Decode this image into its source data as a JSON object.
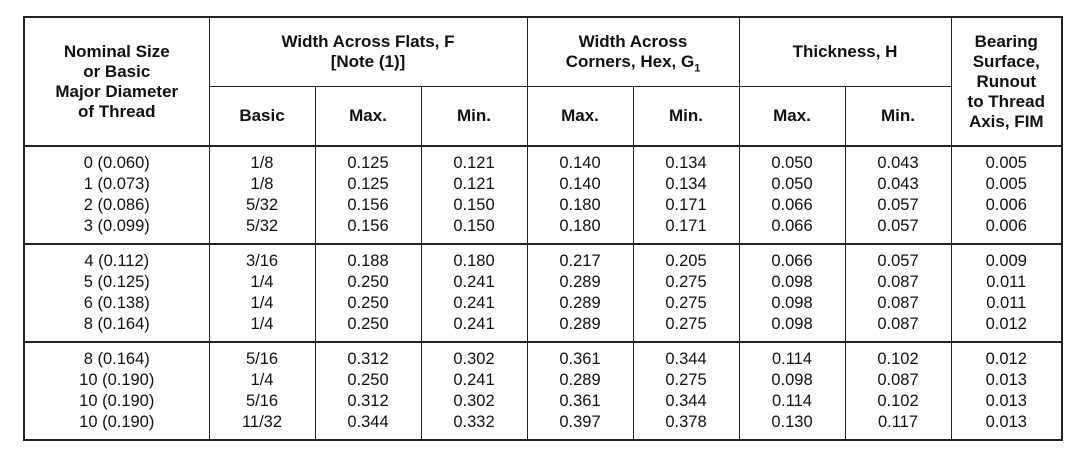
{
  "headers": {
    "nominal": [
      "Nominal Size",
      "or Basic",
      "Major Diameter",
      "of Thread"
    ],
    "width_flats": [
      "Width Across Flats, F",
      "[Note (1)]"
    ],
    "width_corners_a": "Width Across",
    "width_corners_b": "Corners, Hex, G",
    "width_corners_sub": "1",
    "thickness": "Thickness, H",
    "bearing": [
      "Bearing",
      "Surface,",
      "Runout",
      "to Thread",
      "Axis, FIM"
    ],
    "basic": "Basic",
    "max": "Max.",
    "min": "Min."
  },
  "groups": [
    [
      [
        "0 (0.060)",
        "1/8",
        "0.125",
        "0.121",
        "0.140",
        "0.134",
        "0.050",
        "0.043",
        "0.005"
      ],
      [
        "1 (0.073)",
        "1/8",
        "0.125",
        "0.121",
        "0.140",
        "0.134",
        "0.050",
        "0.043",
        "0.005"
      ],
      [
        "2 (0.086)",
        "5/32",
        "0.156",
        "0.150",
        "0.180",
        "0.171",
        "0.066",
        "0.057",
        "0.006"
      ],
      [
        "3 (0.099)",
        "5/32",
        "0.156",
        "0.150",
        "0.180",
        "0.171",
        "0.066",
        "0.057",
        "0.006"
      ]
    ],
    [
      [
        "4 (0.112)",
        "3/16",
        "0.188",
        "0.180",
        "0.217",
        "0.205",
        "0.066",
        "0.057",
        "0.009"
      ],
      [
        "5 (0.125)",
        "1/4",
        "0.250",
        "0.241",
        "0.289",
        "0.275",
        "0.098",
        "0.087",
        "0.011"
      ],
      [
        "6 (0.138)",
        "1/4",
        "0.250",
        "0.241",
        "0.289",
        "0.275",
        "0.098",
        "0.087",
        "0.011"
      ],
      [
        "8 (0.164)",
        "1/4",
        "0.250",
        "0.241",
        "0.289",
        "0.275",
        "0.098",
        "0.087",
        "0.012"
      ]
    ],
    [
      [
        "8 (0.164)",
        "5/16",
        "0.312",
        "0.302",
        "0.361",
        "0.344",
        "0.114",
        "0.102",
        "0.012"
      ],
      [
        "10 (0.190)",
        "1/4",
        "0.250",
        "0.241",
        "0.289",
        "0.275",
        "0.098",
        "0.087",
        "0.013"
      ],
      [
        "10 (0.190)",
        "5/16",
        "0.312",
        "0.302",
        "0.361",
        "0.344",
        "0.114",
        "0.102",
        "0.013"
      ],
      [
        "10 (0.190)",
        "11/32",
        "0.344",
        "0.332",
        "0.397",
        "0.378",
        "0.130",
        "0.117",
        "0.013"
      ]
    ]
  ]
}
